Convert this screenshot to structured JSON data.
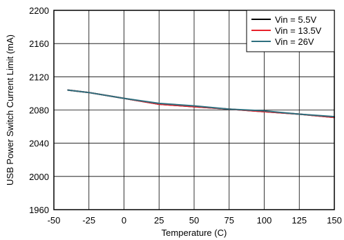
{
  "chart_data": {
    "type": "line",
    "title": "",
    "xlabel": "Temperature (C)",
    "ylabel": "USB Power Switch Current Limit (mA)",
    "xlim": [
      -50,
      150
    ],
    "ylim": [
      1960,
      2200
    ],
    "xticks": [
      -50,
      -25,
      0,
      25,
      50,
      75,
      100,
      125,
      150
    ],
    "yticks": [
      1960,
      2000,
      2040,
      2080,
      2120,
      2160,
      2200
    ],
    "grid": true,
    "legend_position": "top-right",
    "series": [
      {
        "name": "Vin = 5.5V",
        "color": "#000000",
        "x": [
          -40,
          -25,
          0,
          25,
          50,
          75,
          100,
          125,
          150
        ],
        "y": [
          2104,
          2101,
          2094,
          2087,
          2084,
          2081,
          2078,
          2075,
          2071
        ]
      },
      {
        "name": "Vin = 13.5V",
        "color": "#e8202a",
        "x": [
          -40,
          -25,
          0,
          25,
          50,
          75,
          100,
          125,
          150
        ],
        "y": [
          2104,
          2101,
          2094,
          2087,
          2084,
          2081,
          2078,
          2075,
          2071
        ]
      },
      {
        "name": "Vin = 26V",
        "color": "#2e6f7e",
        "x": [
          -40,
          -25,
          0,
          25,
          50,
          75,
          100,
          125,
          150
        ],
        "y": [
          2104,
          2101,
          2094,
          2088,
          2085,
          2081,
          2079,
          2075,
          2072
        ]
      }
    ]
  }
}
